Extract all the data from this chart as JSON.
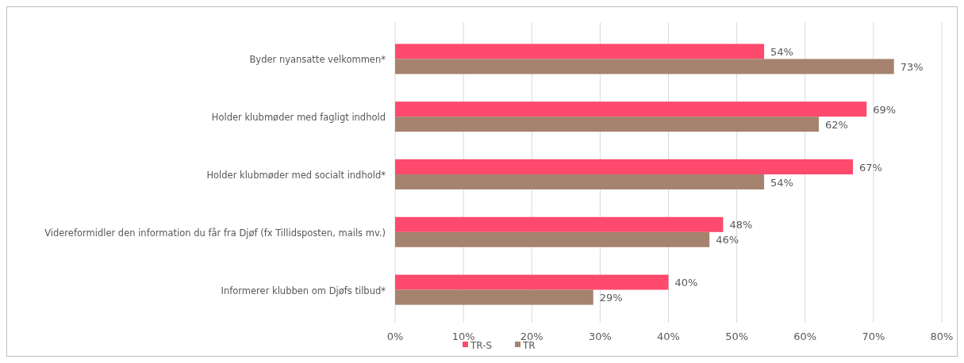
{
  "chart_data": {
    "type": "bar",
    "orientation": "horizontal",
    "categories": [
      "Byder nyansatte velkommen*",
      "Holder klubmøder med fagligt indhold",
      "Holder klubmøder med socialt indhold*",
      "Videreformidler den information du får fra Djøf (fx Tillidsposten, mails mv.)",
      "Informerer klubben om Djøfs tilbud*"
    ],
    "series": [
      {
        "name": "TR-S",
        "color": "#fd4a6d",
        "values": [
          54,
          69,
          67,
          48,
          40
        ],
        "value_labels": [
          "54%",
          "69%",
          "67%",
          "48%",
          "40%"
        ]
      },
      {
        "name": "TR",
        "color": "#a6836e",
        "values": [
          73,
          62,
          54,
          46,
          29
        ],
        "value_labels": [
          "73%",
          "62%",
          "54%",
          "46%",
          "29%"
        ]
      }
    ],
    "xlim": [
      0,
      80
    ],
    "xticks": [
      {
        "value": 0,
        "label": "0%"
      },
      {
        "value": 10,
        "label": "10%"
      },
      {
        "value": 20,
        "label": "20%"
      },
      {
        "value": 30,
        "label": "30%"
      },
      {
        "value": 40,
        "label": "40%"
      },
      {
        "value": 50,
        "label": "50%"
      },
      {
        "value": 60,
        "label": "60%"
      },
      {
        "value": 70,
        "label": "70%"
      },
      {
        "value": 80,
        "label": "80%"
      }
    ],
    "grid": "x",
    "legend": "bottom"
  }
}
